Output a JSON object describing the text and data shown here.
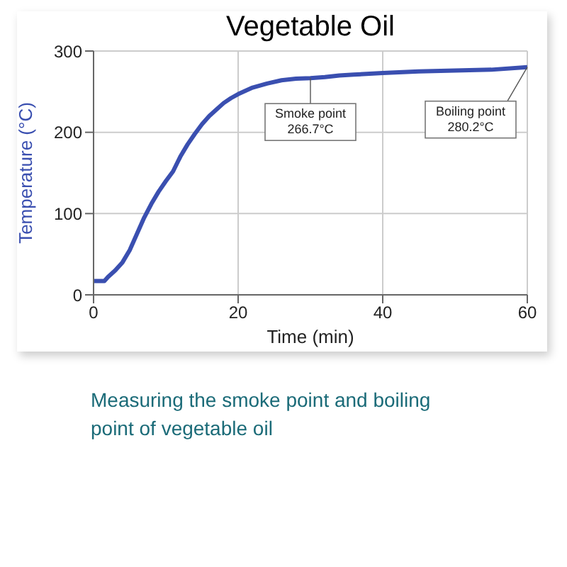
{
  "chart_data": {
    "type": "line",
    "title": "Vegetable Oil",
    "xlabel": "Time (min)",
    "ylabel": "Temperature (°C)",
    "x": [
      0,
      1.5,
      2,
      3,
      4,
      5,
      6,
      7,
      8,
      9,
      10,
      11,
      12,
      13,
      14,
      15,
      16,
      17,
      18,
      19,
      20,
      22,
      24,
      26,
      28,
      30,
      32,
      34,
      36,
      40,
      45,
      50,
      55,
      60
    ],
    "series": [
      {
        "color": "#3a4fb0",
        "values": [
          17,
          17,
          22,
          30,
          40,
          55,
          75,
          95,
          112,
          127,
          140,
          152,
          170,
          185,
          198,
          210,
          220,
          228,
          236,
          242,
          247,
          255,
          260,
          264,
          266,
          266.7,
          268,
          270,
          271,
          273,
          275,
          276,
          277,
          280.2
        ]
      }
    ],
    "xlim": [
      0,
      60
    ],
    "xticks": [
      0,
      20,
      40,
      60
    ],
    "ylim": [
      0,
      300
    ],
    "yticks": [
      0,
      100,
      200,
      300
    ],
    "grid": true,
    "marker": "none",
    "line_style": "solid",
    "annotations": [
      {
        "text": "Smoke point\n266.7°C",
        "x": 30,
        "y": 266.7
      },
      {
        "text": "Boiling point\n280.2°C",
        "x": 60,
        "y": 280.2
      },
      "Measuring the smoke point and boiling\npoint of vegetable oil"
    ]
  }
}
